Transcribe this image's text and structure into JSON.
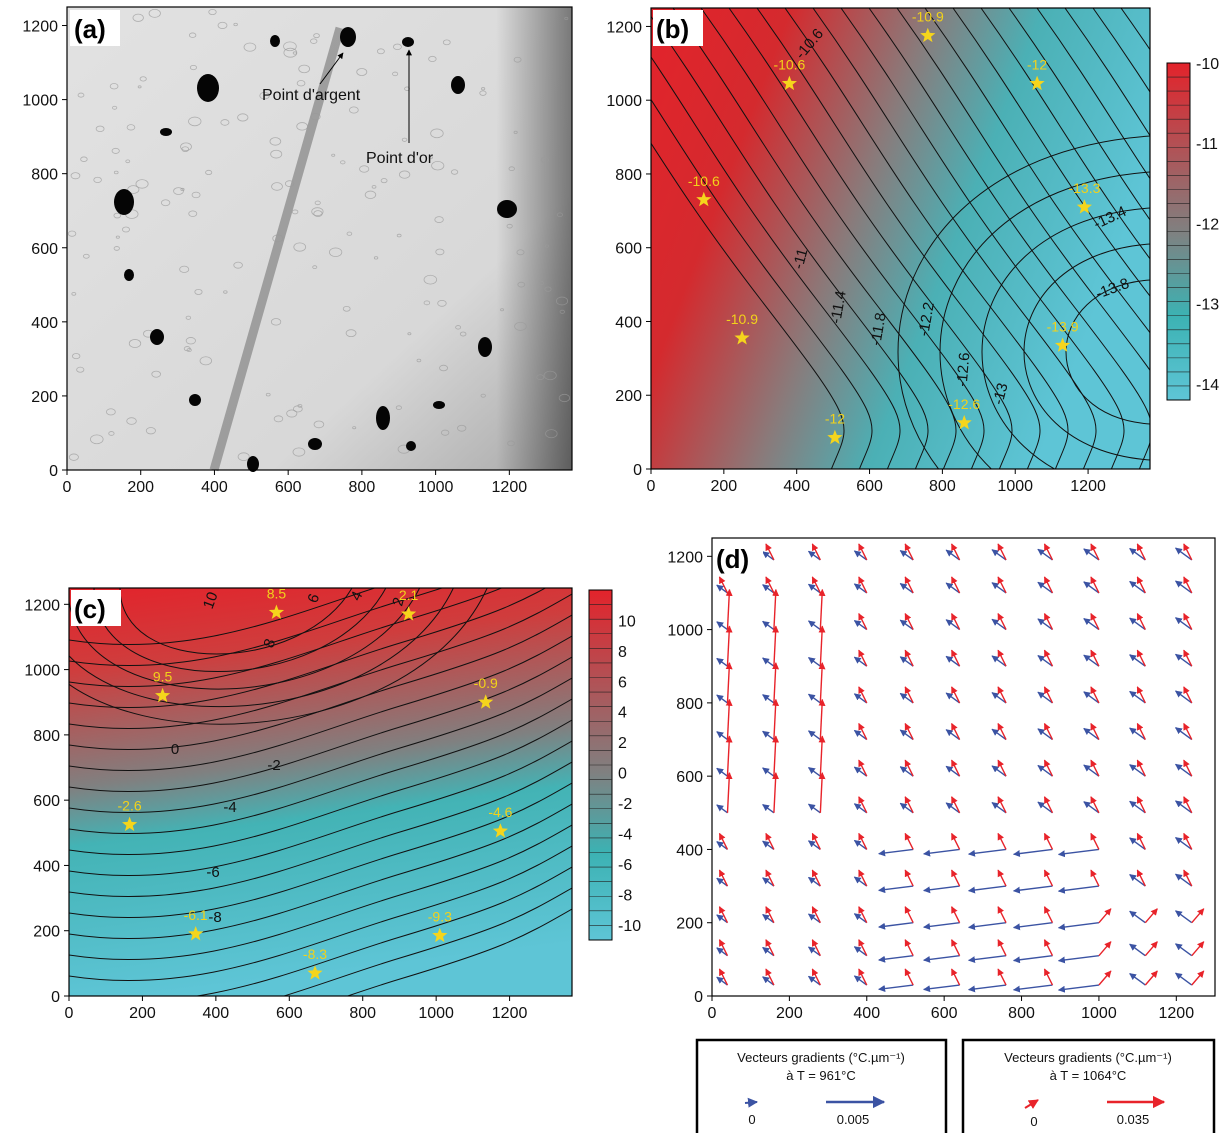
{
  "panels": {
    "a": {
      "label": "(a)",
      "annotation_silver": "Point d'argent",
      "annotation_gold": "Point d'or"
    },
    "b": {
      "label": "(b)"
    },
    "c": {
      "label": "(c)"
    },
    "d": {
      "label": "(d)"
    }
  },
  "legend_961": {
    "title": "Vecteurs gradients (°C.µm⁻¹)",
    "subtitle": "à T = 961°C",
    "zero": "0",
    "ref": "0.005",
    "color": "#3b53a3"
  },
  "legend_1064": {
    "title": "Vecteurs gradients (°C.µm⁻¹)",
    "subtitle": "à T = 1064°C",
    "zero": "0",
    "ref": "0.035",
    "color": "#e8232a"
  },
  "chart_data": [
    {
      "type": "image",
      "panel": "(a)",
      "xlim": [
        0,
        1370
      ],
      "ylim": [
        0,
        1250
      ],
      "xticks": [
        "0",
        "200",
        "400",
        "600",
        "800",
        "1000",
        "1200"
      ],
      "yticks": [
        "0",
        "200",
        "400",
        "600",
        "800",
        "1000",
        "1200"
      ],
      "annotations": [
        "Point d'argent",
        "Point d'or"
      ]
    },
    {
      "type": "heatmap",
      "panel": "(b)",
      "xlim": [
        0,
        1370
      ],
      "ylim": [
        0,
        1250
      ],
      "xticks": [
        "0",
        "200",
        "400",
        "600",
        "800",
        "1000",
        "1200"
      ],
      "yticks": [
        "0",
        "200",
        "400",
        "600",
        "800",
        "1000",
        "1200"
      ],
      "colorbar": {
        "min": -14.2,
        "max": -10,
        "ticks": [
          "-10",
          "-11",
          "-12",
          "-13",
          "-14"
        ],
        "high_color": "#e3232b",
        "mid_color": "#808080",
        "low_color": "#5ec5d6"
      },
      "contour_labels": [
        "-10.6",
        "-11",
        "-11.4",
        "-11.8",
        "-12.2",
        "-12.6",
        "-13",
        "-13.4",
        "-13.8"
      ],
      "points": [
        {
          "x": 145,
          "y": 730,
          "label": "-10.6"
        },
        {
          "x": 380,
          "y": 1045,
          "label": "-10.6"
        },
        {
          "x": 760,
          "y": 1175,
          "label": "-10.9"
        },
        {
          "x": 250,
          "y": 355,
          "label": "-10.9"
        },
        {
          "x": 1060,
          "y": 1045,
          "label": "-12"
        },
        {
          "x": 505,
          "y": 85,
          "label": "-12"
        },
        {
          "x": 860,
          "y": 125,
          "label": "-12.6"
        },
        {
          "x": 1190,
          "y": 710,
          "label": "-13.3"
        },
        {
          "x": 1130,
          "y": 335,
          "label": "-13.9"
        }
      ]
    },
    {
      "type": "heatmap",
      "panel": "(c)",
      "xlim": [
        0,
        1370
      ],
      "ylim": [
        0,
        1250
      ],
      "xticks": [
        "0",
        "200",
        "400",
        "600",
        "800",
        "1000",
        "1200"
      ],
      "yticks": [
        "0",
        "200",
        "400",
        "600",
        "800",
        "1000",
        "1200"
      ],
      "colorbar": {
        "min": -11,
        "max": 12,
        "ticks": [
          "10",
          "8",
          "6",
          "4",
          "2",
          "0",
          "-2",
          "-4",
          "-6",
          "-8",
          "-10"
        ],
        "high_color": "#e3232b",
        "mid_color": "#808080",
        "low_color": "#5ec5d6"
      },
      "contour_labels": [
        "10",
        "8",
        "6",
        "4",
        "2",
        "0",
        "-2",
        "-4",
        "-6",
        "-8"
      ],
      "points": [
        {
          "x": 255,
          "y": 920,
          "label": "9.5"
        },
        {
          "x": 565,
          "y": 1175,
          "label": "8.5"
        },
        {
          "x": 925,
          "y": 1170,
          "label": "2.1"
        },
        {
          "x": 1135,
          "y": 900,
          "label": "-0.9"
        },
        {
          "x": 165,
          "y": 525,
          "label": "-2.6"
        },
        {
          "x": 1175,
          "y": 505,
          "label": "-4.6"
        },
        {
          "x": 345,
          "y": 190,
          "label": "-6.1"
        },
        {
          "x": 670,
          "y": 70,
          "label": "-8.3"
        },
        {
          "x": 1010,
          "y": 185,
          "label": "-9.3"
        }
      ]
    },
    {
      "type": "quiver",
      "panel": "(d)",
      "xlim": [
        0,
        1300
      ],
      "ylim": [
        0,
        1250
      ],
      "xticks": [
        "0",
        "200",
        "400",
        "600",
        "800",
        "1000",
        "1200"
      ],
      "yticks": [
        "0",
        "200",
        "400",
        "600",
        "800",
        "1000",
        "1200"
      ],
      "series": [
        {
          "name": "à T = 961°C",
          "color": "#3b53a3",
          "ref_magnitude": 0.005
        },
        {
          "name": "à T = 1064°C",
          "color": "#e8232a",
          "ref_magnitude": 0.035
        }
      ],
      "grid_x": [
        40,
        160,
        280,
        400,
        520,
        640,
        760,
        880,
        1000,
        1120,
        1240
      ],
      "grid_y": [
        1190,
        1100,
        1000,
        900,
        800,
        700,
        600,
        500,
        400,
        300,
        200,
        110,
        30
      ]
    }
  ]
}
